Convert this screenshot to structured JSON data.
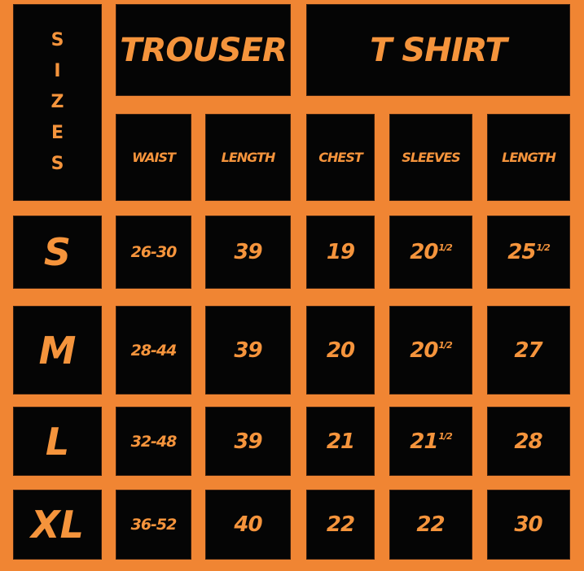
{
  "sizes_label": [
    "S",
    "I",
    "Z",
    "E",
    "S"
  ],
  "groups": {
    "trouser": "TROUSER",
    "tshirt": "T SHIRT"
  },
  "columns": [
    "WAIST",
    "LENGTH",
    "CHEST",
    "SLEEVES",
    "LENGTH"
  ],
  "rows": [
    {
      "size": "S",
      "waist": "26-30",
      "trouser_length": "39",
      "chest": "19",
      "sleeves": "20",
      "sleeves_frac": "1/2",
      "tshirt_length": "25",
      "tshirt_length_frac": "1/2"
    },
    {
      "size": "M",
      "waist": "28-44",
      "trouser_length": "39",
      "chest": "20",
      "sleeves": "20",
      "sleeves_frac": "1/2",
      "tshirt_length": "27",
      "tshirt_length_frac": ""
    },
    {
      "size": "L",
      "waist": "32-48",
      "trouser_length": "39",
      "chest": "21",
      "sleeves": "21",
      "sleeves_frac": "1/2",
      "tshirt_length": "28",
      "tshirt_length_frac": ""
    },
    {
      "size": "XL",
      "waist": "36-52",
      "trouser_length": "40",
      "chest": "22",
      "sleeves": "22",
      "sleeves_frac": "",
      "tshirt_length": "30",
      "tshirt_length_frac": ""
    }
  ],
  "colors": {
    "background": "#f08533",
    "cell": "#050505",
    "text": "#f5943c"
  }
}
